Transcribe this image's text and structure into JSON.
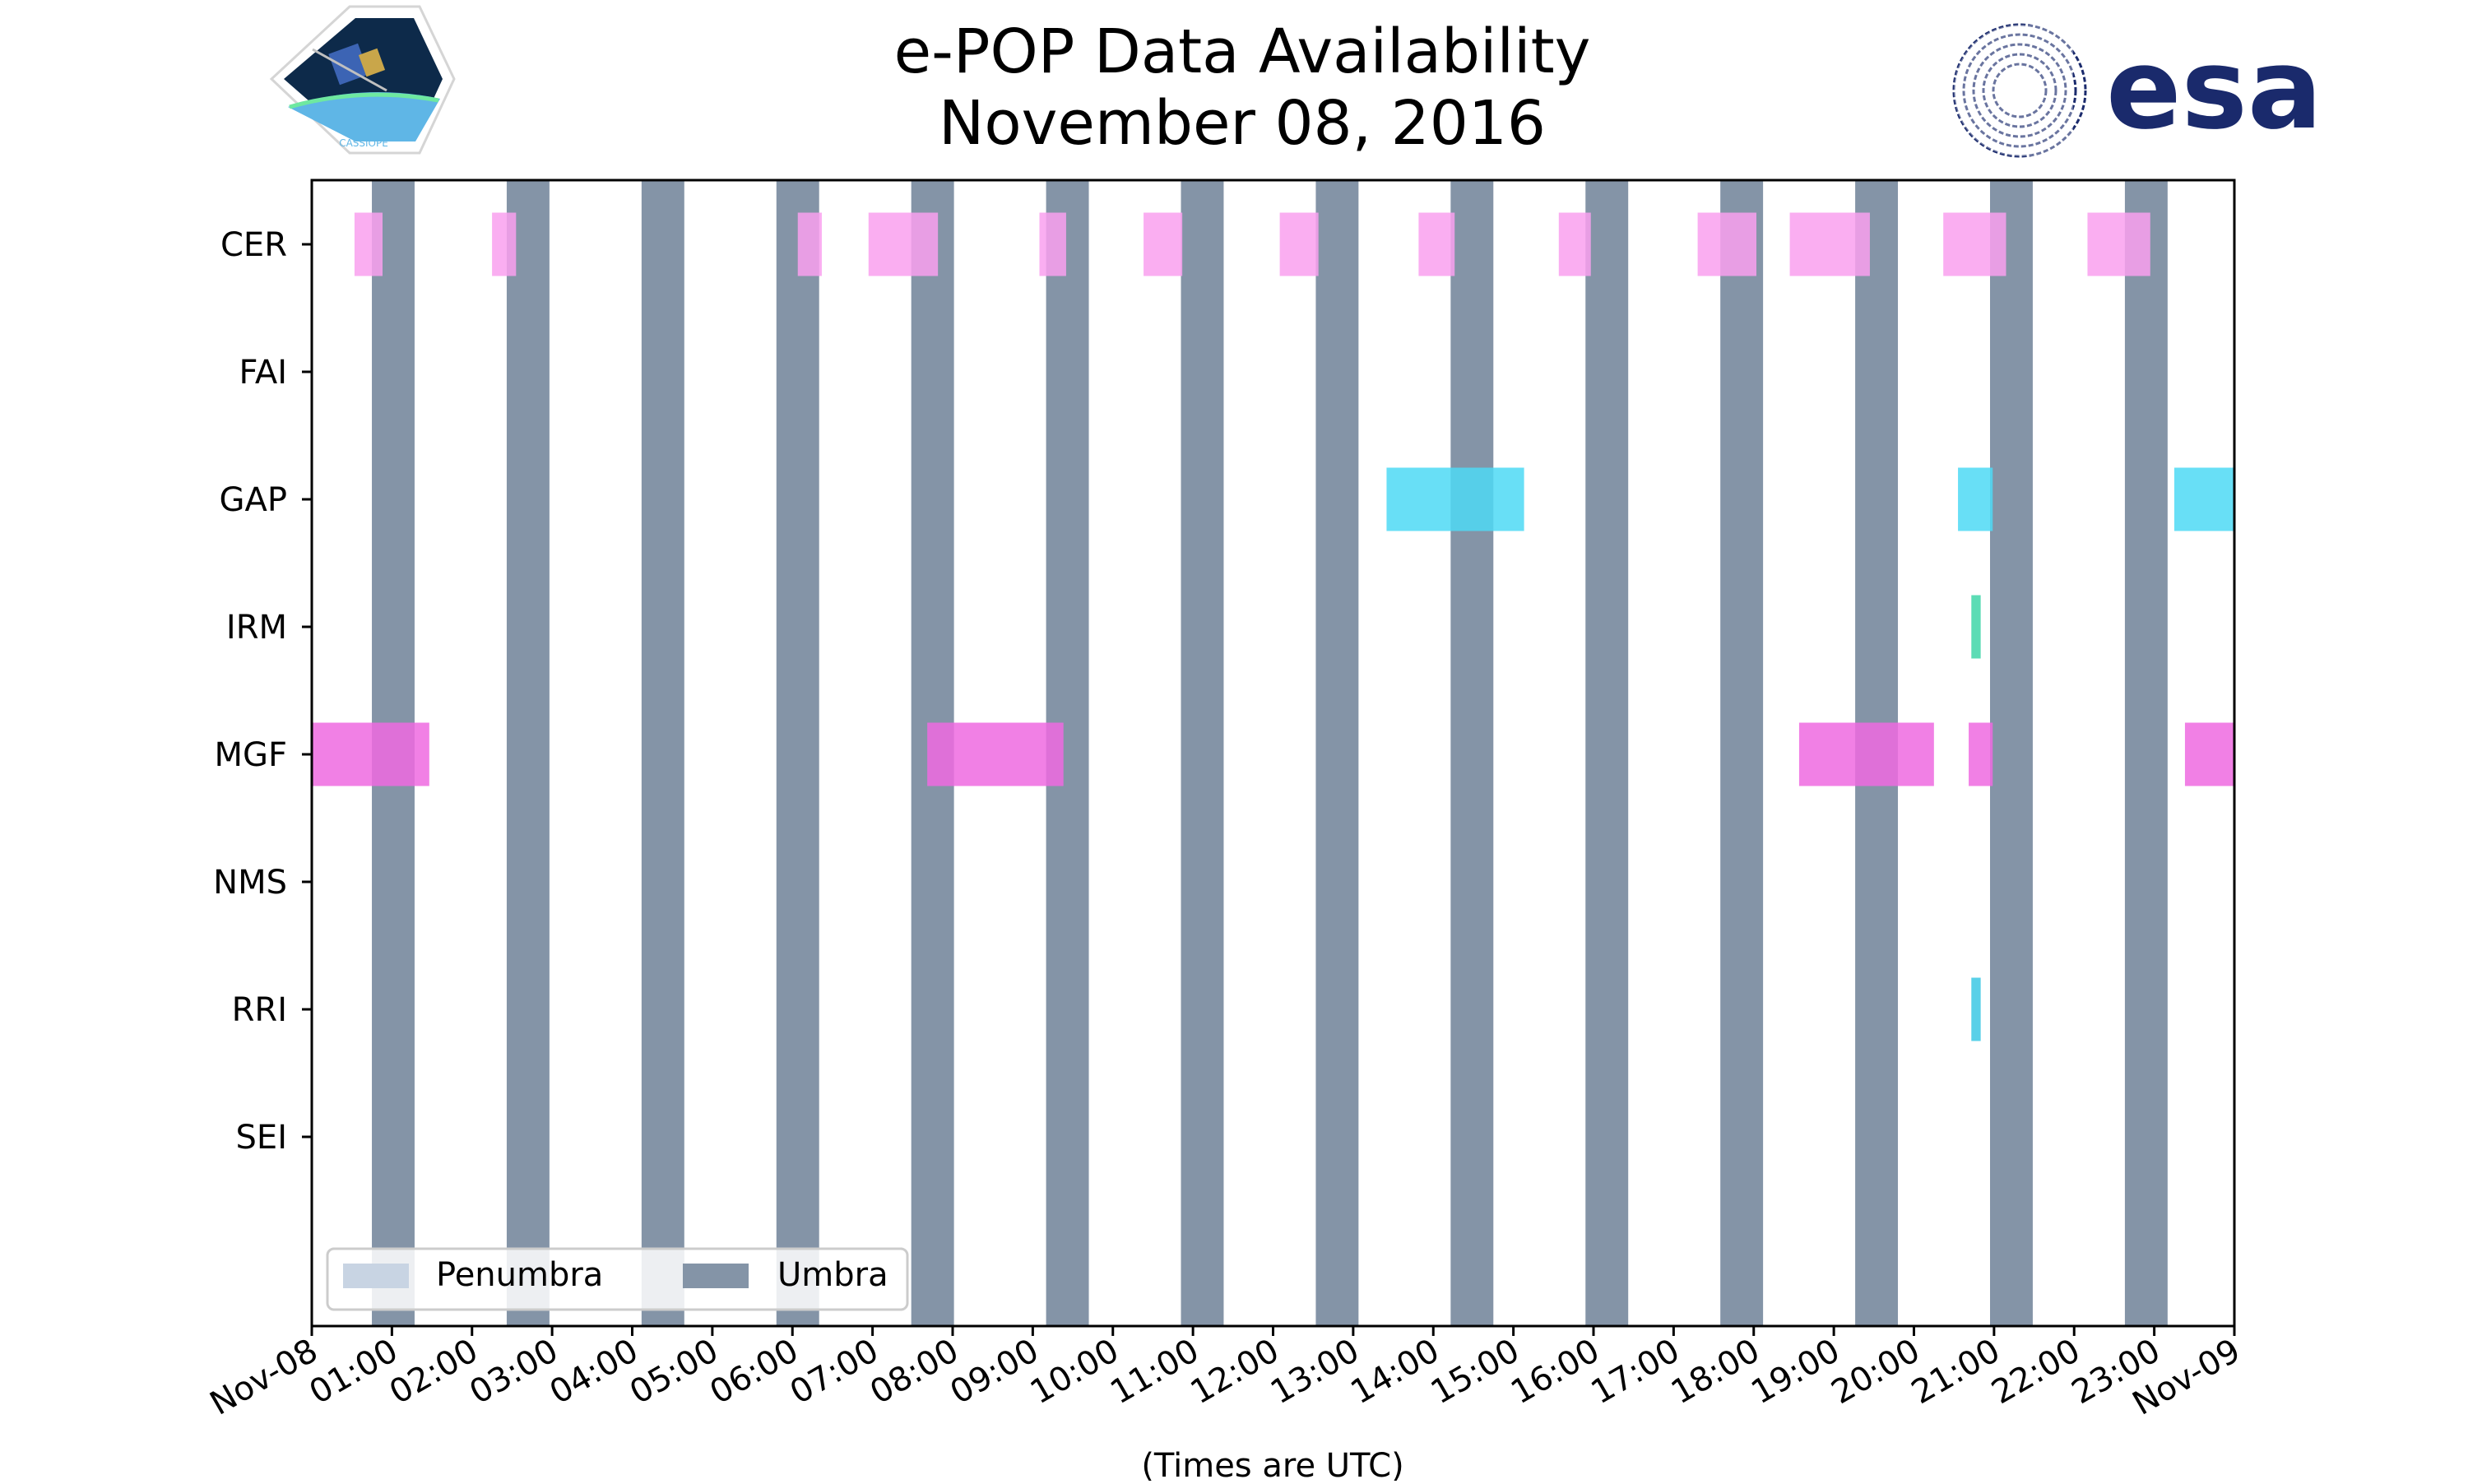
{
  "logos": {
    "left_text": "CASSIOPE",
    "right_text": "esa",
    "colors": {
      "esa": "#1a2a6c",
      "mission_bg": "#0d2a4a",
      "mission_earth": "#5fb6e6"
    }
  },
  "chart_data": {
    "type": "timeline",
    "title": "e-POP Data Availability",
    "subtitle": "November 08, 2016",
    "xlabel": "(Times are UTC)",
    "ylabel": "",
    "xlim_hours": [
      0,
      24
    ],
    "x_tick_labels": [
      "Nov-08",
      "01:00",
      "02:00",
      "03:00",
      "04:00",
      "05:00",
      "06:00",
      "07:00",
      "08:00",
      "09:00",
      "10:00",
      "11:00",
      "12:00",
      "13:00",
      "14:00",
      "15:00",
      "16:00",
      "17:00",
      "18:00",
      "19:00",
      "20:00",
      "21:00",
      "22:00",
      "23:00",
      "Nov-09"
    ],
    "instruments": [
      "CER",
      "FAI",
      "GAP",
      "IRM",
      "MGF",
      "NMS",
      "RRI",
      "SEI"
    ],
    "grid": false,
    "legend": {
      "placement": "lower-left",
      "entries": [
        {
          "label": "Penumbra",
          "color": "#c8d4e3"
        },
        {
          "label": "Umbra",
          "color": "#8494a7"
        }
      ]
    },
    "umbra": [
      {
        "start": "00:45",
        "end": "01:17"
      },
      {
        "start": "02:26",
        "end": "02:58"
      },
      {
        "start": "04:07",
        "end": "04:39"
      },
      {
        "start": "05:48",
        "end": "06:20"
      },
      {
        "start": "07:29",
        "end": "08:01"
      },
      {
        "start": "09:10",
        "end": "09:42"
      },
      {
        "start": "10:51",
        "end": "11:23"
      },
      {
        "start": "12:32",
        "end": "13:04"
      },
      {
        "start": "14:13",
        "end": "14:45"
      },
      {
        "start": "15:54",
        "end": "16:26"
      },
      {
        "start": "17:35",
        "end": "18:07"
      },
      {
        "start": "19:16",
        "end": "19:48"
      },
      {
        "start": "20:57",
        "end": "21:29"
      },
      {
        "start": "22:38",
        "end": "23:10"
      }
    ],
    "availability": [
      {
        "instrument": "CER",
        "color": "#f9a0ef",
        "segments": [
          {
            "start": "00:32",
            "end": "00:53"
          },
          {
            "start": "02:15",
            "end": "02:33"
          },
          {
            "start": "06:04",
            "end": "06:22"
          },
          {
            "start": "06:57",
            "end": "07:49"
          },
          {
            "start": "09:05",
            "end": "09:25"
          },
          {
            "start": "10:23",
            "end": "10:52"
          },
          {
            "start": "12:05",
            "end": "12:34"
          },
          {
            "start": "13:49",
            "end": "14:16"
          },
          {
            "start": "15:34",
            "end": "15:58"
          },
          {
            "start": "17:18",
            "end": "18:02"
          },
          {
            "start": "18:27",
            "end": "19:27"
          },
          {
            "start": "20:22",
            "end": "21:09"
          },
          {
            "start": "22:10",
            "end": "22:57"
          }
        ]
      },
      {
        "instrument": "FAI",
        "color": "#d36ad1",
        "segments": []
      },
      {
        "instrument": "GAP",
        "color": "#4dd9f5",
        "segments": [
          {
            "start": "13:25",
            "end": "15:08"
          },
          {
            "start": "20:33",
            "end": "20:59"
          },
          {
            "start": "23:15",
            "end": "24:00"
          }
        ]
      },
      {
        "instrument": "IRM",
        "color": "#3fd6a8",
        "segments": [
          {
            "start": "20:43",
            "end": "20:50"
          }
        ]
      },
      {
        "instrument": "MGF",
        "color": "#ee6ae0",
        "segments": [
          {
            "start": "00:00",
            "end": "01:28"
          },
          {
            "start": "07:41",
            "end": "09:23"
          },
          {
            "start": "18:34",
            "end": "20:15"
          },
          {
            "start": "20:41",
            "end": "20:59"
          },
          {
            "start": "23:23",
            "end": "24:00"
          }
        ]
      },
      {
        "instrument": "NMS",
        "color": "#aaaaaa",
        "segments": []
      },
      {
        "instrument": "RRI",
        "color": "#3cc8e4",
        "segments": [
          {
            "start": "20:43",
            "end": "20:50"
          }
        ]
      },
      {
        "instrument": "SEI",
        "color": "#aaaaaa",
        "segments": []
      }
    ]
  }
}
